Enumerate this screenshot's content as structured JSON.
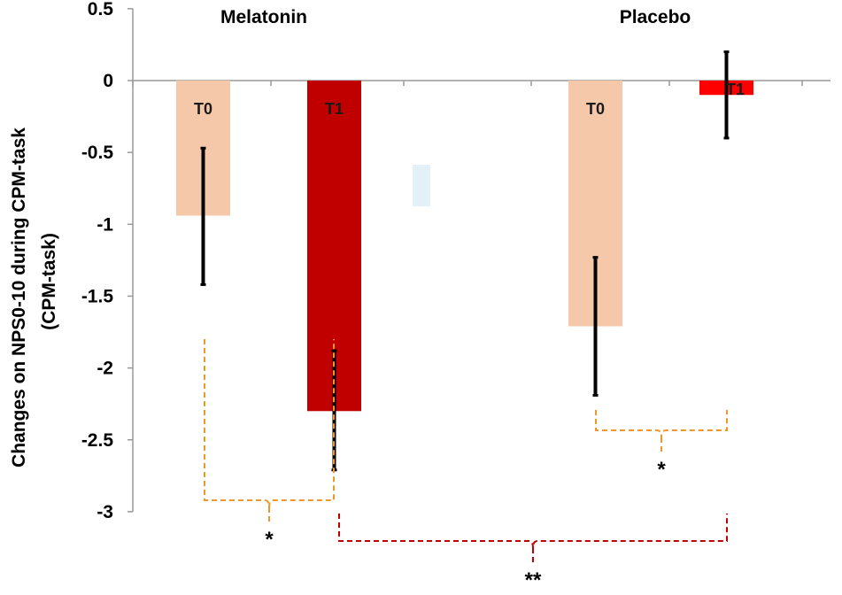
{
  "chart_data": {
    "type": "bar",
    "ylabel": "Changes on NPS0-10 during CPM-task",
    "ylabel_line2": "(CPM-task)",
    "ylim": [
      -3,
      0.5
    ],
    "yticks": [
      0.5,
      0,
      -0.5,
      -1,
      -1.5,
      -2,
      -2.5,
      -3
    ],
    "ytick_labels": [
      "0.5",
      "0",
      "-0.5",
      "-1",
      "-1.5",
      "-2",
      "-2.5",
      "-3"
    ],
    "groups": [
      {
        "name": "Melatonin",
        "bars": [
          {
            "label": "T0",
            "value": -0.94,
            "err_low": -1.42,
            "err_high": -0.47,
            "color": "#f5c8aa"
          },
          {
            "label": "T1",
            "value": -2.3,
            "err_low": -2.71,
            "err_high": -1.88,
            "color": "#c00000"
          }
        ]
      },
      {
        "name": "Placebo",
        "bars": [
          {
            "label": "T0",
            "value": -1.71,
            "err_low": -2.19,
            "err_high": -1.23,
            "color": "#f5c8aa"
          },
          {
            "label": "T1",
            "value": -0.1,
            "err_low": -0.4,
            "err_high": 0.2,
            "color": "#ff0000"
          }
        ]
      }
    ],
    "significance": [
      {
        "label": "*",
        "between": "Melatonin T0 vs T1",
        "color": "#f0962d"
      },
      {
        "label": "*",
        "between": "Placebo T0 vs T1",
        "color": "#f0962d"
      },
      {
        "label": "**",
        "between": "Melatonin T1 vs Placebo T1",
        "color": "#c00000"
      }
    ]
  }
}
